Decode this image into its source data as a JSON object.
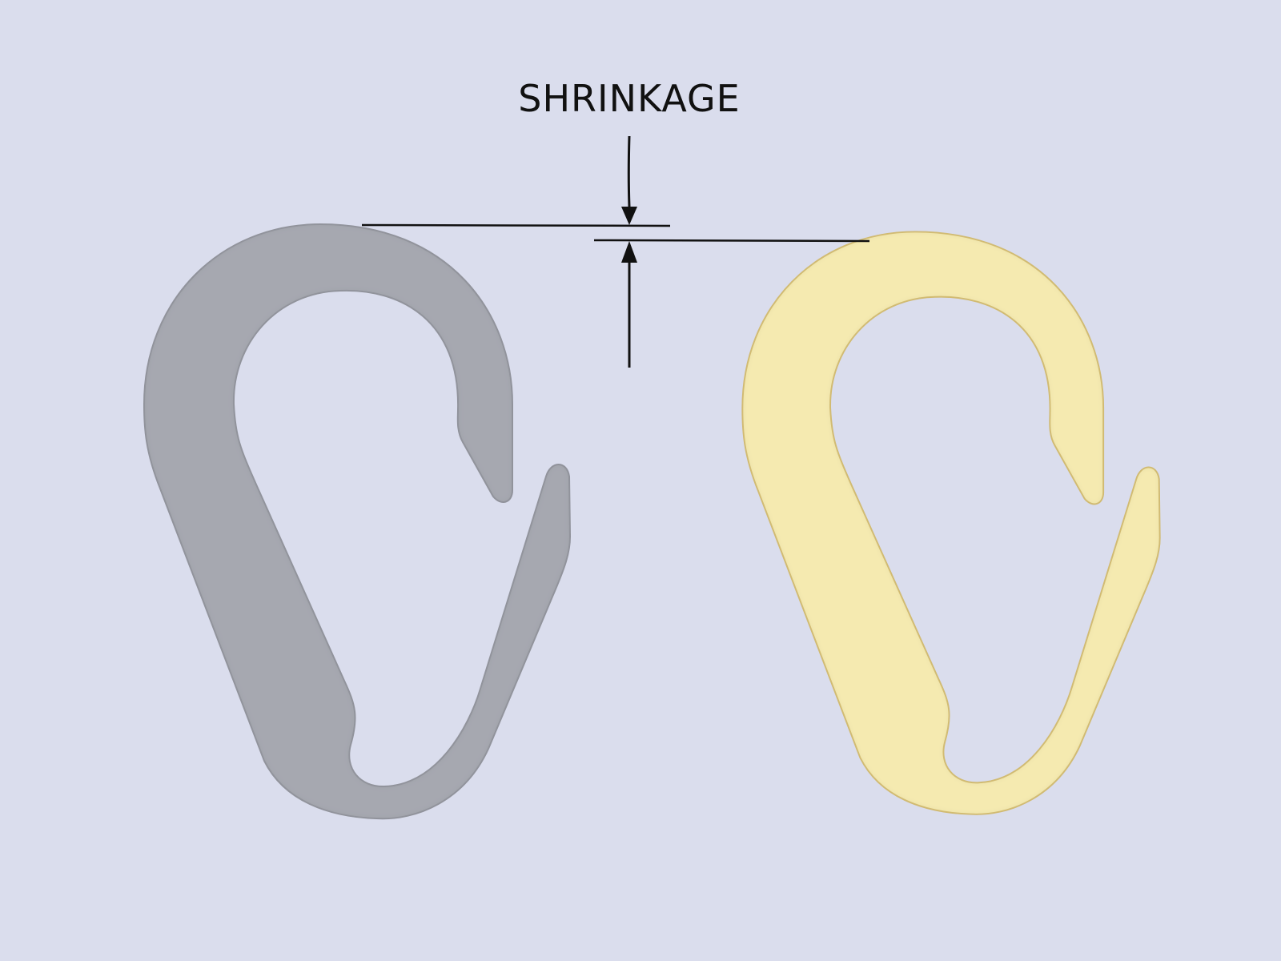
{
  "annotation": {
    "label": "SHRINKAGE"
  },
  "parts": [
    {
      "name": "original-clip",
      "color": "#a6a8b0",
      "description": "grey"
    },
    {
      "name": "shrunk-clip",
      "color": "#f5eab0",
      "description": "yellow"
    }
  ],
  "colors": {
    "background": "#dadded",
    "line": "#111111"
  }
}
